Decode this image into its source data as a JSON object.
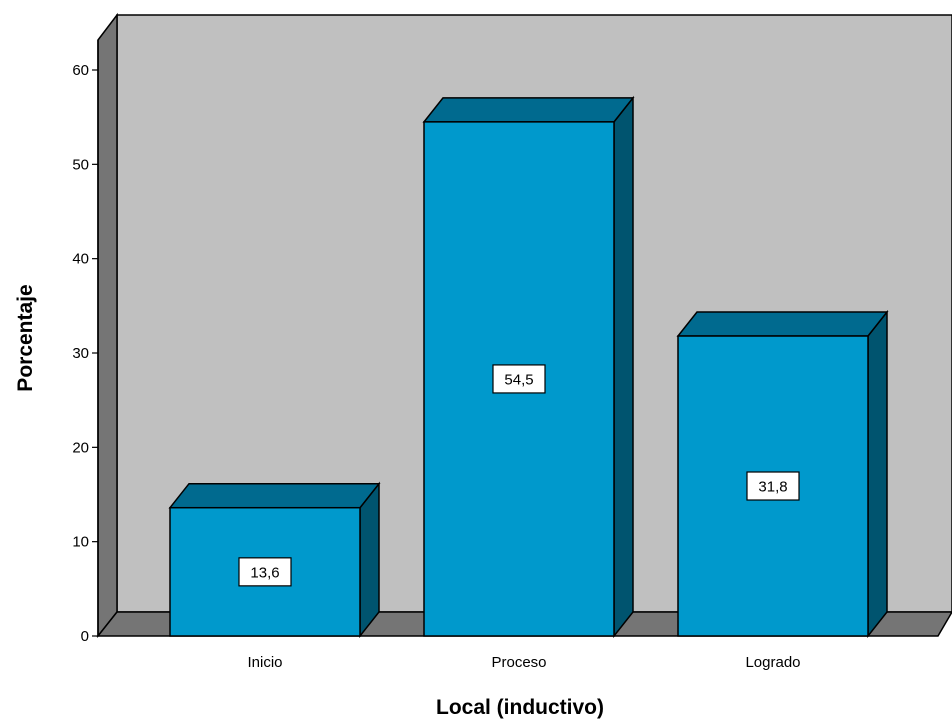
{
  "chart_data": {
    "type": "bar",
    "categories": [
      "Inicio",
      "Proceso",
      "Logrado"
    ],
    "values": [
      13.6,
      54.5,
      31.8
    ],
    "value_labels": [
      "13,6",
      "54,5",
      "31,8"
    ],
    "title": "",
    "xlabel": "Local (inductivo)",
    "ylabel": "Porcentaje",
    "ylim": [
      0,
      60
    ],
    "yticks": [
      0,
      10,
      20,
      30,
      40,
      50,
      60
    ],
    "style": "3d",
    "grid": false,
    "colors": {
      "bar_front": "#0099cc",
      "bar_top": "#006a8f",
      "bar_side": "#00546f",
      "back_wall": "#c0c0c0",
      "side_wall": "#757575",
      "floor": "#757575",
      "label_box": "#ffffff"
    }
  }
}
